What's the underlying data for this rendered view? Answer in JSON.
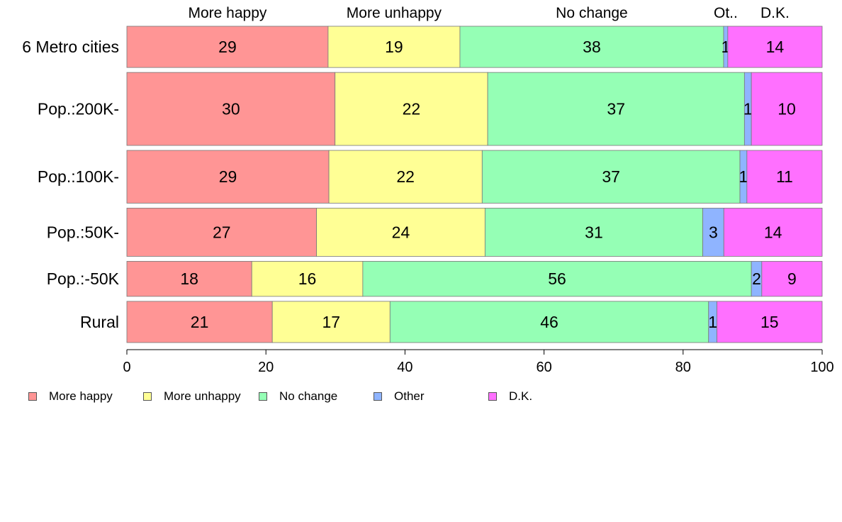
{
  "chart_data": {
    "type": "bar",
    "orientation": "horizontal",
    "stacked": true,
    "title": "",
    "xlabel": "",
    "ylabel": "",
    "xlim": [
      0,
      100
    ],
    "x_ticks": [
      "0",
      "20",
      "40",
      "60",
      "80",
      "100"
    ],
    "grid": false,
    "legend_position": "bottom",
    "categories": [
      "6 Metro cities",
      "Pop.:200K-",
      "Pop.:100K-",
      "Pop.:50K-",
      "Pop.:-50K",
      "Rural"
    ],
    "bar_weights": [
      1.0,
      1.77,
      1.28,
      1.17,
      0.85,
      1.0
    ],
    "top_labels": [
      "More happy",
      "More unhappy",
      "No change",
      "Ot..",
      "D.K."
    ],
    "series": [
      {
        "name": "More happy",
        "color": "#ff9595",
        "values": [
          29,
          30,
          29,
          27,
          18,
          21
        ],
        "labels": [
          "29",
          "30",
          "29",
          "27",
          "18",
          "21"
        ]
      },
      {
        "name": "More unhappy",
        "color": "#ffff95",
        "values": [
          19,
          22,
          22,
          24,
          16,
          17
        ],
        "labels": [
          "19",
          "22",
          "22",
          "24",
          "16",
          "17"
        ]
      },
      {
        "name": "No change",
        "color": "#95ffb5",
        "values": [
          38,
          37,
          37,
          31,
          56,
          46
        ],
        "labels": [
          "38",
          "37",
          "37",
          "31",
          "56",
          "46"
        ]
      },
      {
        "name": "Other",
        "color": "#8fb4ff",
        "values": [
          0.6,
          1,
          1,
          3,
          1.5,
          1.2
        ],
        "labels": [
          "1",
          "1",
          "1",
          "3",
          "2",
          "1"
        ]
      },
      {
        "name": "D.K.",
        "color": "#ff70ff",
        "values": [
          13.6,
          10.2,
          10.8,
          14,
          8.7,
          15.2
        ],
        "labels": [
          "14",
          "10",
          "11",
          "14",
          "9",
          "15"
        ]
      }
    ]
  }
}
